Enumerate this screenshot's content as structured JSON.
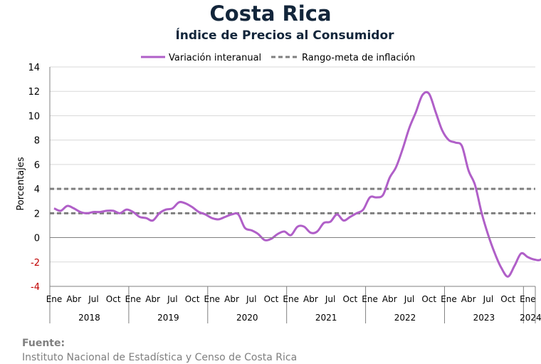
{
  "header": {
    "title": "Costa Rica",
    "subtitle": "Índice de Precios al Consumidor"
  },
  "source": {
    "label": "Fuente:",
    "text": "Instituto Nacional de Estadística y Censo de Costa Rica"
  },
  "colors": {
    "series": "#b05fc8",
    "target": "#7f7f7f",
    "grid": "#d9d9d9",
    "negative_tick": "#c00000",
    "title": "#13263b"
  },
  "chart_data": {
    "type": "line",
    "ylabel": "Porcentajes",
    "ylim": [
      -4,
      14
    ],
    "yticks": [
      -4,
      -2,
      0,
      2,
      4,
      6,
      8,
      10,
      12,
      14
    ],
    "grid": true,
    "legend_position": "top",
    "month_labels": [
      "Ene",
      "Abr",
      "Jul",
      "Oct"
    ],
    "years": [
      "2018",
      "2019",
      "2020",
      "2021",
      "2022",
      "2023",
      "2024"
    ],
    "series": [
      {
        "name": "Variación interanual",
        "style": "solid",
        "start": "2018-01",
        "end": "2024-01",
        "values": [
          2.4,
          2.2,
          2.6,
          2.4,
          2.1,
          2.0,
          2.1,
          2.1,
          2.2,
          2.2,
          2.0,
          2.3,
          2.1,
          1.7,
          1.6,
          1.4,
          2.0,
          2.3,
          2.4,
          2.9,
          2.8,
          2.5,
          2.1,
          1.9,
          1.6,
          1.5,
          1.7,
          1.9,
          1.9,
          0.8,
          0.6,
          0.3,
          -0.2,
          -0.1,
          0.3,
          0.5,
          0.2,
          0.9,
          0.9,
          0.4,
          0.5,
          1.2,
          1.3,
          1.9,
          1.4,
          1.7,
          2.0,
          2.3,
          3.3,
          3.3,
          3.5,
          4.9,
          5.8,
          7.3,
          9.0,
          10.3,
          11.7,
          11.8,
          10.3,
          8.8,
          8.0,
          7.8,
          7.5,
          5.5,
          4.3,
          2.0,
          0.2,
          -1.3,
          -2.5,
          -3.2,
          -2.3,
          -1.3,
          -1.6,
          -1.8,
          -1.8,
          -1.1
        ]
      },
      {
        "name": "Rango-meta de inflación",
        "style": "dashed",
        "bounds": [
          2,
          4
        ]
      }
    ]
  }
}
